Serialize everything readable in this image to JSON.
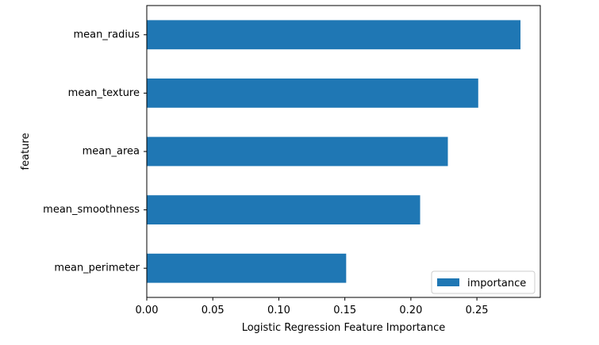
{
  "chart_data": {
    "type": "bar",
    "orientation": "horizontal",
    "categories": [
      "mean_radius",
      "mean_texture",
      "mean_area",
      "mean_smoothness",
      "mean_perimeter"
    ],
    "series": [
      {
        "name": "importance",
        "values": [
          0.283,
          0.251,
          0.228,
          0.207,
          0.151
        ]
      }
    ],
    "xlabel": "Logistic Regression Feature Importance",
    "ylabel": "feature",
    "xlim": [
      0,
      0.298
    ],
    "xticks": [
      0.0,
      0.05,
      0.1,
      0.15,
      0.2,
      0.25
    ],
    "xtick_labels": [
      "0.00",
      "0.05",
      "0.10",
      "0.15",
      "0.20",
      "0.25"
    ],
    "grid": false,
    "legend_position": "lower-right",
    "bar_color": "#1f77b4"
  }
}
